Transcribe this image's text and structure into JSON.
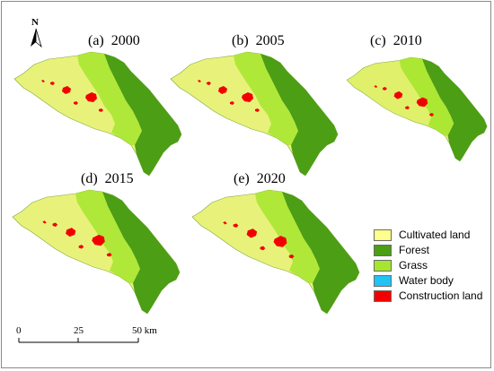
{
  "panels": [
    {
      "id": "a",
      "title": "(a)  2000"
    },
    {
      "id": "b",
      "title": "(b)  2005"
    },
    {
      "id": "c",
      "title": "(c)  2010"
    },
    {
      "id": "d",
      "title": "(d)  2015"
    },
    {
      "id": "e",
      "title": "(e)  2020"
    }
  ],
  "north_arrow": {
    "label": "N"
  },
  "legend": {
    "items": [
      {
        "label": "Cultivated land",
        "color": "#ffff8c"
      },
      {
        "label": "Forest",
        "color": "#4c9e15"
      },
      {
        "label": "Grass",
        "color": "#a6e62e"
      },
      {
        "label": "Water body",
        "color": "#21c2f5"
      },
      {
        "label": "Construction land",
        "color": "#f20000"
      }
    ]
  },
  "scale_bar": {
    "ticks": [
      "0",
      "25",
      "50 km"
    ]
  }
}
